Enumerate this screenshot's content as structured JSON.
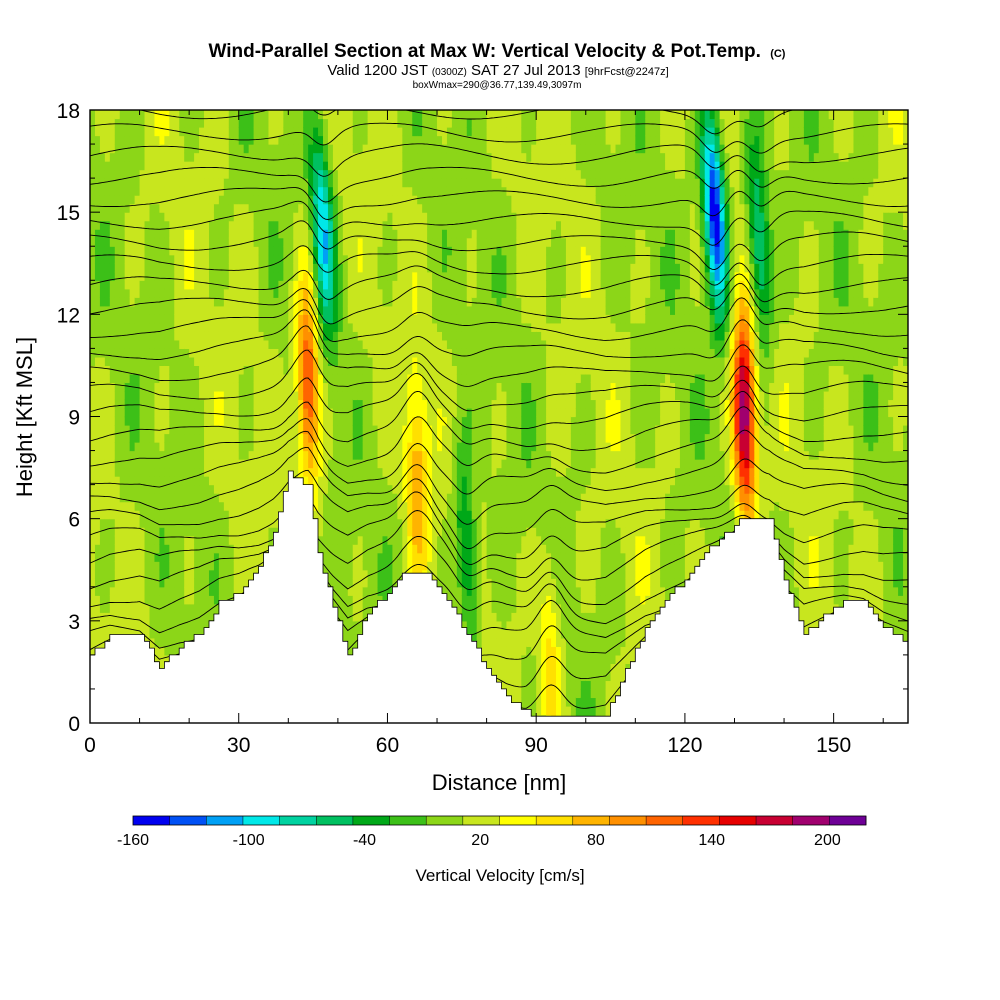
{
  "chart_data": {
    "type": "heatmap",
    "title": "Wind-Parallel Section at Max W: Vertical Velocity & Pot.Temp.",
    "title_mark": "(C)",
    "subtitle_valid": "Valid 1200 JST",
    "subtitle_utc": "(0300Z)",
    "subtitle_date": "SAT 27 Jul 2013",
    "subtitle_fcst": "[9hrFcst@2247z]",
    "subtitle_box": "boxWmax=290@36.77,139.49,3097m",
    "xlabel": "Distance [nm]",
    "ylabel": "Height [Kft MSL]",
    "xlim": [
      0,
      165
    ],
    "ylim": [
      0,
      18
    ],
    "xticks": [
      0,
      30,
      60,
      90,
      120,
      150
    ],
    "yticks": [
      0,
      3,
      6,
      9,
      12,
      15,
      18
    ],
    "x_tick_labels": [
      "0",
      "30",
      "60",
      "90",
      "120",
      "150"
    ],
    "y_tick_labels": [
      "0",
      "3",
      "6",
      "9",
      "12",
      "15",
      "18"
    ],
    "colorbar": {
      "label": "Vertical Velocity [cm/s]",
      "tick_labels": [
        "-160",
        "-100",
        "-40",
        "20",
        "80",
        "140",
        "200"
      ],
      "tick_values": [
        -160,
        -100,
        -40,
        20,
        80,
        140,
        200
      ],
      "range": [
        -160,
        220
      ],
      "colors": [
        "#0000f0",
        "#0050f5",
        "#00a0f5",
        "#00e8e8",
        "#00d2a0",
        "#00c060",
        "#00a818",
        "#3cc018",
        "#8cd618",
        "#c8e61e",
        "#ffff00",
        "#ffe000",
        "#ffb400",
        "#ff9000",
        "#ff6400",
        "#ff3000",
        "#e60000",
        "#c80032",
        "#a0006e",
        "#6e0096"
      ]
    },
    "terrain_kft": [
      [
        0,
        2.0
      ],
      [
        4,
        2.6
      ],
      [
        10,
        2.6
      ],
      [
        14,
        1.6
      ],
      [
        18,
        2.2
      ],
      [
        22,
        2.6
      ],
      [
        26,
        3.5
      ],
      [
        30,
        3.8
      ],
      [
        34,
        4.6
      ],
      [
        37,
        5.6
      ],
      [
        40,
        7.3
      ],
      [
        44,
        7.0
      ],
      [
        46,
        5.0
      ],
      [
        49,
        3.4
      ],
      [
        52,
        2.0
      ],
      [
        56,
        3.2
      ],
      [
        60,
        3.8
      ],
      [
        63,
        4.4
      ],
      [
        68,
        4.4
      ],
      [
        72,
        3.6
      ],
      [
        76,
        2.6
      ],
      [
        80,
        1.6
      ],
      [
        84,
        0.8
      ],
      [
        88,
        0.3
      ],
      [
        104,
        0.3
      ],
      [
        108,
        1.5
      ],
      [
        112,
        2.8
      ],
      [
        116,
        3.6
      ],
      [
        120,
        4.2
      ],
      [
        124,
        5.0
      ],
      [
        128,
        5.6
      ],
      [
        132,
        6.0
      ],
      [
        137,
        6.0
      ],
      [
        140,
        4.2
      ],
      [
        144,
        2.6
      ],
      [
        148,
        3.1
      ],
      [
        152,
        3.6
      ],
      [
        156,
        3.6
      ],
      [
        160,
        2.8
      ],
      [
        165,
        2.4
      ]
    ],
    "vertical_velocity_features": [
      {
        "x": 44,
        "z": 10.0,
        "w": 140
      },
      {
        "x": 47,
        "z": 14.5,
        "w": -100
      },
      {
        "x": 66,
        "z": 7.0,
        "w": 80
      },
      {
        "x": 76,
        "z": 5.0,
        "w": -60
      },
      {
        "x": 93,
        "z": 2.0,
        "w": 60
      },
      {
        "x": 126,
        "z": 15.0,
        "w": -160
      },
      {
        "x": 132,
        "z": 9.0,
        "w": 200
      },
      {
        "x": 135,
        "z": 14.0,
        "w": -80
      }
    ],
    "isentrope_count": 28
  }
}
